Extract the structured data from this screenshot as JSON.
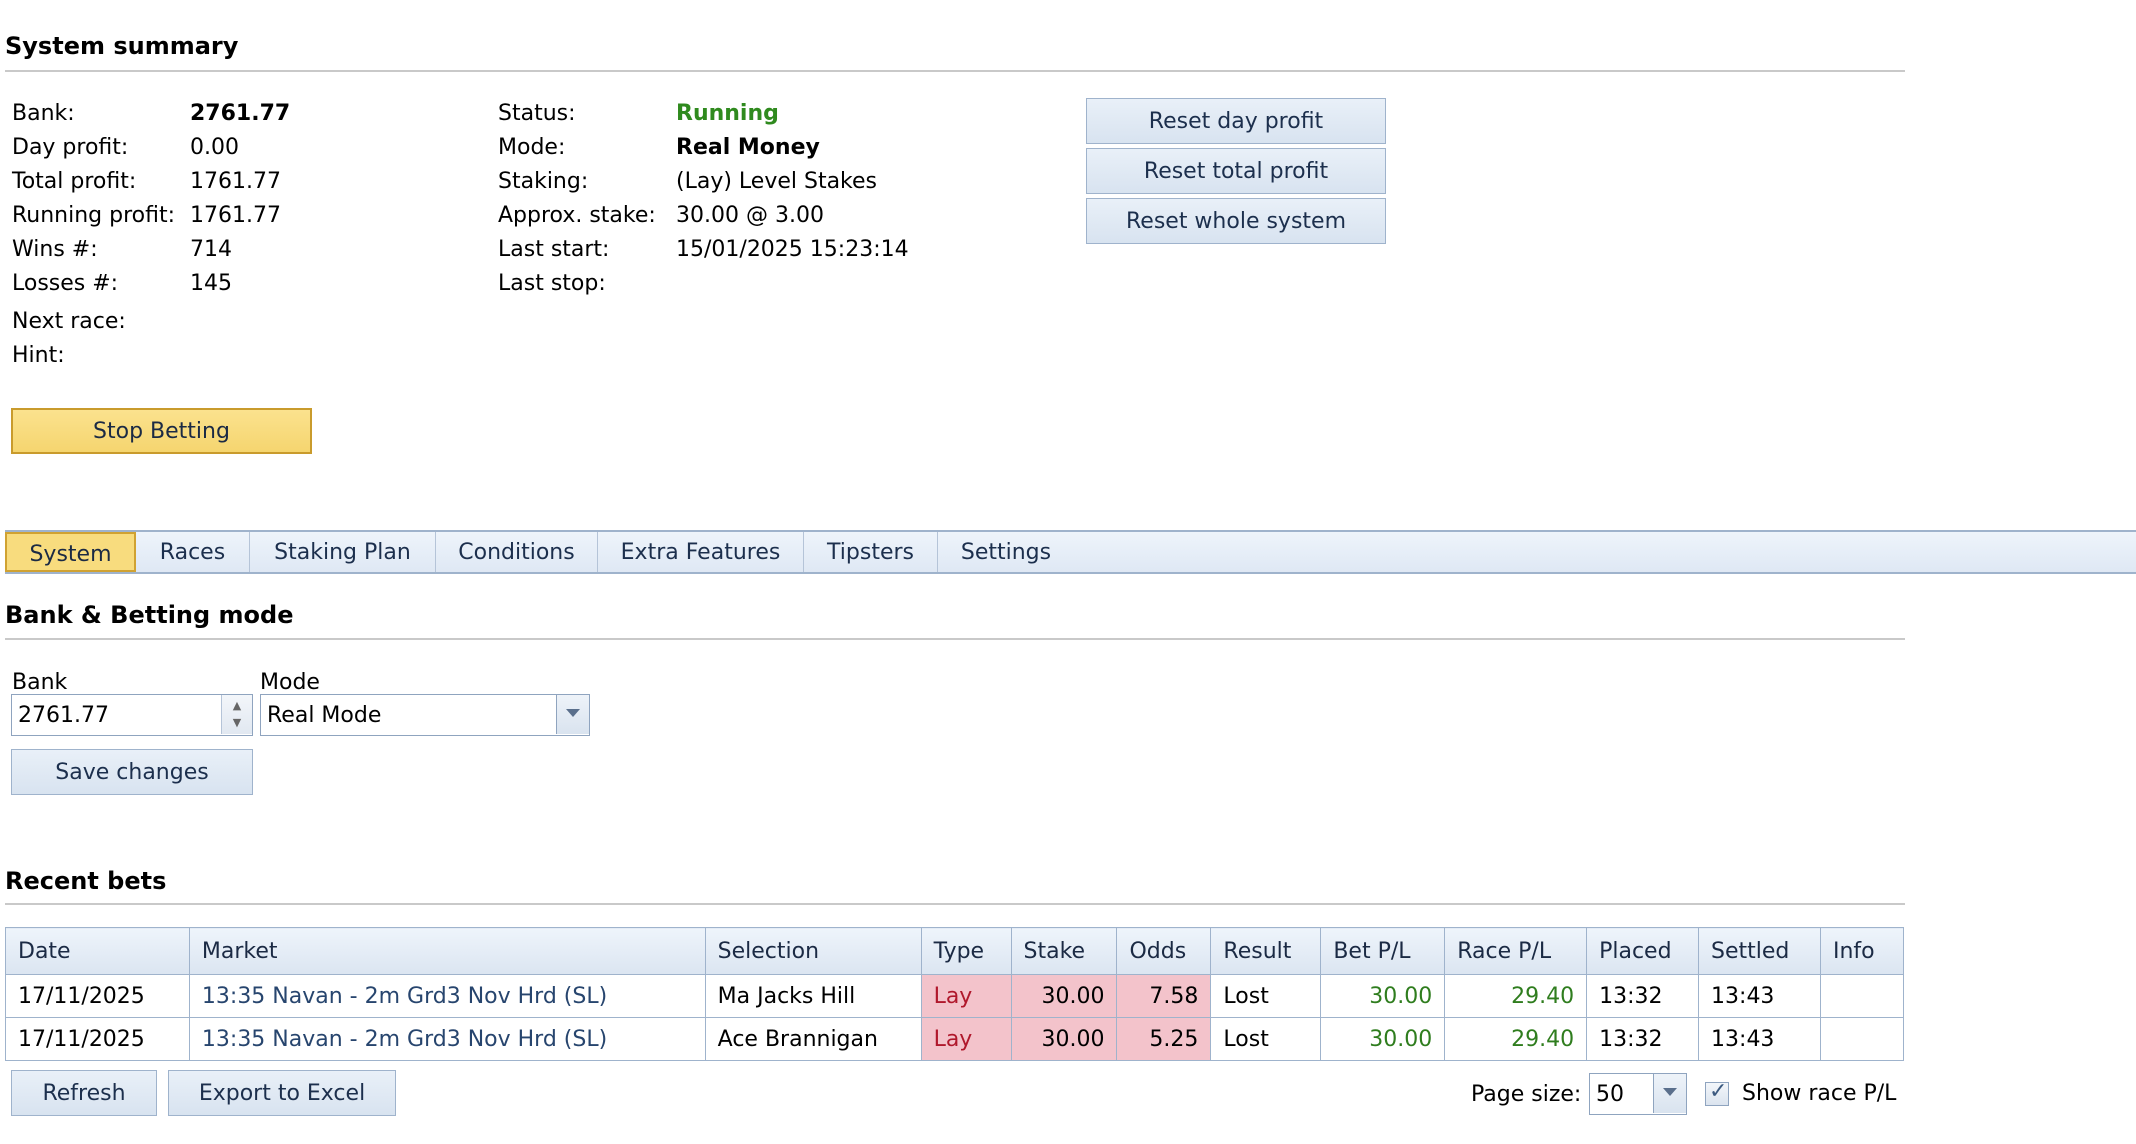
{
  "summary": {
    "title": "System summary",
    "left": [
      {
        "label": "Bank:",
        "value": "2761.77"
      },
      {
        "label": "Day profit:",
        "value": "0.00"
      },
      {
        "label": "Total profit:",
        "value": "1761.77"
      },
      {
        "label": "Running profit:",
        "value": "1761.77"
      },
      {
        "label": "Wins #:",
        "value": "714"
      },
      {
        "label": "Losses #:",
        "value": "145"
      },
      {
        "label": "Next race:",
        "value": ""
      },
      {
        "label": "Hint:",
        "value": ""
      }
    ],
    "right": [
      {
        "label": "Status:",
        "value": "Running"
      },
      {
        "label": "Mode:",
        "value": "Real Money"
      },
      {
        "label": "Staking:",
        "value": "(Lay) Level Stakes"
      },
      {
        "label": "Approx. stake:",
        "value": "30.00 @ 3.00"
      },
      {
        "label": "Last start:",
        "value": "15/01/2025 15:23:14"
      },
      {
        "label": "Last stop:",
        "value": ""
      }
    ],
    "status_color": "#2f8a1e",
    "buttons": {
      "reset_day": "Reset day profit",
      "reset_total": "Reset total profit",
      "reset_system": "Reset whole system",
      "stop_betting": "Stop Betting"
    }
  },
  "tabs": [
    {
      "label": "System",
      "active": true
    },
    {
      "label": "Races"
    },
    {
      "label": "Staking Plan"
    },
    {
      "label": "Conditions"
    },
    {
      "label": "Extra Features"
    },
    {
      "label": "Tipsters"
    },
    {
      "label": "Settings"
    }
  ],
  "bank_mode": {
    "title": "Bank & Betting mode",
    "bank_label": "Bank",
    "bank_value": "2761.77",
    "mode_label": "Mode",
    "mode_value": "Real Mode",
    "save_label": "Save changes"
  },
  "recent_bets": {
    "title": "Recent bets",
    "columns": [
      "Date",
      "Market",
      "Selection",
      "Type",
      "Stake",
      "Odds",
      "Result",
      "Bet P/L",
      "Race P/L",
      "Placed",
      "Settled",
      "Info"
    ],
    "rows": [
      {
        "date": "17/11/2025",
        "market": "13:35 Navan - 2m Grd3 Nov Hrd (SL)",
        "selection": "Ma Jacks Hill",
        "type": "Lay",
        "stake": "30.00",
        "odds": "7.58",
        "result": "Lost",
        "bet_pl": "30.00",
        "race_pl": "29.40",
        "placed": "13:32",
        "settled": "13:43",
        "info": ""
      },
      {
        "date": "17/11/2025",
        "market": "13:35 Navan - 2m Grd3 Nov Hrd (SL)",
        "selection": "Ace Brannigan",
        "type": "Lay",
        "stake": "30.00",
        "odds": "5.25",
        "result": "Lost",
        "bet_pl": "30.00",
        "race_pl": "29.40",
        "placed": "13:32",
        "settled": "13:43",
        "info": ""
      }
    ],
    "refresh_label": "Refresh",
    "export_label": "Export to Excel",
    "page_size_label": "Page size:",
    "page_size_value": "50",
    "show_race_pl_label": "Show race P/L",
    "show_race_pl_checked": true
  }
}
